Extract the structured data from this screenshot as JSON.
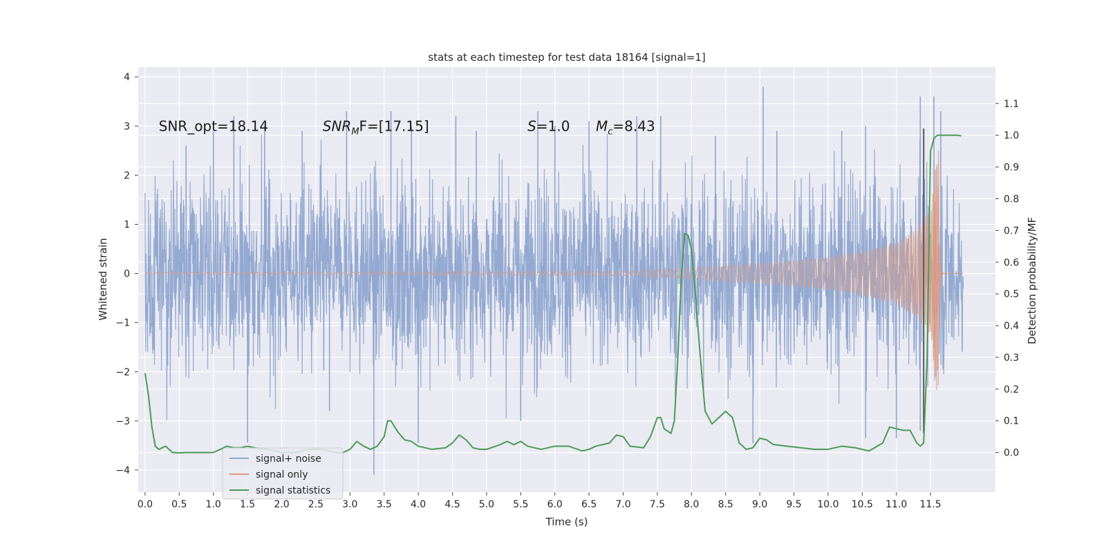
{
  "chart_data": {
    "type": "line",
    "title": "stats at each timestep for test data 18164 [signal=1]",
    "xlabel": "Time (s)",
    "ylabel_left": "Whitened strain",
    "ylabel_right": "Detection probability/MF",
    "xlim": [
      -0.1,
      12.45
    ],
    "ylim_left": [
      -4.45,
      4.2
    ],
    "ylim_right": [
      -0.125,
      1.215
    ],
    "x_ticks": [
      0.0,
      0.5,
      1.0,
      1.5,
      2.0,
      2.5,
      3.0,
      3.5,
      4.0,
      4.5,
      5.0,
      5.5,
      6.0,
      6.5,
      7.0,
      7.5,
      8.0,
      8.5,
      9.0,
      9.5,
      10.0,
      10.5,
      11.0,
      11.5
    ],
    "x_tick_labels": [
      "0.0",
      "0.5",
      "1.0",
      "1.5",
      "2.0",
      "2.5",
      "3.0",
      "3.5",
      "4.0",
      "4.5",
      "5.0",
      "5.5",
      "6.0",
      "6.5",
      "7.0",
      "7.5",
      "8.0",
      "8.5",
      "9.0",
      "9.5",
      "10.0",
      "10.5",
      "11.0",
      "11.5"
    ],
    "y_left_ticks": [
      -4,
      -3,
      -2,
      -1,
      0,
      1,
      2,
      3,
      4
    ],
    "y_left_tick_labels": [
      "−4",
      "−3",
      "−2",
      "−1",
      "0",
      "1",
      "2",
      "3",
      "4"
    ],
    "y_right_ticks": [
      0.0,
      0.1,
      0.2,
      0.3,
      0.4,
      0.5,
      0.6,
      0.7,
      0.8,
      0.9,
      1.0,
      1.1
    ],
    "y_right_tick_labels": [
      "0.0",
      "0.1",
      "0.2",
      "0.3",
      "0.4",
      "0.5",
      "0.6",
      "0.7",
      "0.8",
      "0.9",
      "1.0",
      "1.1"
    ],
    "grid": true,
    "legend_position": "lower-left",
    "annotations": [
      {
        "text": "SNR_opt=18.14",
        "x": 0.2,
        "y": 3.0
      },
      {
        "text": "SNR",
        "sub": "M",
        "text_after": "F=[17.15]",
        "italic": true,
        "x": 2.6,
        "y": 3.0
      },
      {
        "text": "S",
        "text_after": "=1.0",
        "italic": true,
        "x": 5.6,
        "y": 3.0
      },
      {
        "text": "M",
        "sub": "c",
        "text_after": "=8.43",
        "italic": true,
        "x": 6.6,
        "y": 3.0
      }
    ],
    "series": [
      {
        "name": "signal+ noise",
        "color": "#8fa5cf",
        "kind": "noise",
        "x_range": [
          0.0,
          11.98
        ],
        "approx_band": [
          -2.3,
          2.3
        ],
        "peak_max": 3.8,
        "peak_min": -4.1,
        "spikes": [
          [
            0.6,
            2.6
          ],
          [
            1.0,
            2.9
          ],
          [
            1.3,
            3.2
          ],
          [
            1.5,
            -3.45
          ],
          [
            1.75,
            3.0
          ],
          [
            2.3,
            2.9
          ],
          [
            2.7,
            -2.8
          ],
          [
            2.95,
            3.3
          ],
          [
            3.35,
            -4.1
          ],
          [
            3.6,
            3.3
          ],
          [
            3.9,
            3.0
          ],
          [
            4.0,
            -3.45
          ],
          [
            4.55,
            3.2
          ],
          [
            4.85,
            2.9
          ],
          [
            5.5,
            -3.0
          ],
          [
            5.75,
            3.3
          ],
          [
            6.0,
            3.0
          ],
          [
            6.5,
            3.1
          ],
          [
            7.2,
            3.2
          ],
          [
            7.55,
            3.2
          ],
          [
            8.35,
            2.8
          ],
          [
            8.9,
            -3.45
          ],
          [
            9.05,
            3.8
          ],
          [
            9.25,
            2.9
          ],
          [
            10.2,
            2.9
          ],
          [
            10.55,
            3.0
          ],
          [
            10.55,
            -3.35
          ],
          [
            11.0,
            -3.35
          ],
          [
            11.35,
            3.6
          ],
          [
            11.35,
            -3.2
          ],
          [
            11.55,
            3.6
          ],
          [
            11.65,
            3.3
          ]
        ]
      },
      {
        "name": "signal only",
        "color": "#dd9a80",
        "kind": "chirp",
        "x_range": [
          0.0,
          11.98
        ],
        "merger_time": 11.62,
        "amplitude_points": [
          [
            0.0,
            0.02
          ],
          [
            7.0,
            0.04
          ],
          [
            8.0,
            0.12
          ],
          [
            9.0,
            0.2
          ],
          [
            10.0,
            0.32
          ],
          [
            10.5,
            0.45
          ],
          [
            11.0,
            0.62
          ],
          [
            11.3,
            0.9
          ],
          [
            11.5,
            1.3
          ],
          [
            11.6,
            2.5
          ]
        ]
      },
      {
        "name": "signal statistics",
        "color": "#4a9a55",
        "axis": "right",
        "x": [
          0.0,
          0.05,
          0.1,
          0.15,
          0.2,
          0.3,
          0.4,
          0.5,
          0.6,
          0.8,
          1.0,
          1.1,
          1.2,
          1.3,
          1.4,
          1.5,
          1.6,
          1.8,
          2.0,
          2.2,
          2.4,
          2.6,
          2.8,
          2.9,
          3.0,
          3.1,
          3.2,
          3.3,
          3.4,
          3.5,
          3.55,
          3.6,
          3.7,
          3.8,
          3.9,
          4.0,
          4.2,
          4.4,
          4.5,
          4.6,
          4.7,
          4.8,
          4.9,
          5.0,
          5.2,
          5.3,
          5.4,
          5.5,
          5.6,
          5.8,
          6.0,
          6.2,
          6.4,
          6.5,
          6.6,
          6.8,
          6.9,
          7.0,
          7.1,
          7.3,
          7.4,
          7.5,
          7.55,
          7.6,
          7.7,
          7.75,
          7.8,
          7.85,
          7.9,
          7.95,
          8.0,
          8.05,
          8.1,
          8.15,
          8.2,
          8.3,
          8.4,
          8.5,
          8.6,
          8.7,
          8.8,
          8.9,
          9.0,
          9.1,
          9.2,
          9.4,
          9.6,
          9.8,
          10.0,
          10.2,
          10.4,
          10.6,
          10.8,
          10.9,
          11.0,
          11.1,
          11.2,
          11.3,
          11.35,
          11.4,
          11.45,
          11.5,
          11.55,
          11.6,
          11.7,
          11.8,
          11.9,
          11.95
        ],
        "y": [
          0.25,
          0.18,
          0.08,
          0.02,
          0.01,
          0.02,
          0.0,
          -0.001,
          0.0,
          0.0,
          0.0,
          0.01,
          0.02,
          0.015,
          0.015,
          0.02,
          0.015,
          0.01,
          0.0,
          0.0,
          0.01,
          0.01,
          0.0,
          0.0,
          0.01,
          0.035,
          0.02,
          0.01,
          0.02,
          0.05,
          0.1,
          0.1,
          0.065,
          0.04,
          0.035,
          0.02,
          0.01,
          0.015,
          0.03,
          0.055,
          0.04,
          0.015,
          0.01,
          0.01,
          0.025,
          0.035,
          0.025,
          0.035,
          0.02,
          0.01,
          0.02,
          0.02,
          0.005,
          0.01,
          0.02,
          0.03,
          0.055,
          0.05,
          0.02,
          0.015,
          0.05,
          0.11,
          0.11,
          0.075,
          0.06,
          0.1,
          0.3,
          0.55,
          0.69,
          0.685,
          0.64,
          0.52,
          0.38,
          0.25,
          0.13,
          0.09,
          0.11,
          0.13,
          0.11,
          0.03,
          0.01,
          0.015,
          0.045,
          0.04,
          0.025,
          0.02,
          0.015,
          0.01,
          0.01,
          0.02,
          0.015,
          0.005,
          0.03,
          0.08,
          0.075,
          0.07,
          0.07,
          0.03,
          0.02,
          0.03,
          0.3,
          0.95,
          0.99,
          1.0,
          1.0,
          1.0,
          1.0,
          0.998
        ]
      }
    ],
    "vertical_markers": [
      {
        "x": 11.4,
        "ymin": -3.25,
        "ymax": 2.95,
        "color": "#555555"
      }
    ]
  }
}
